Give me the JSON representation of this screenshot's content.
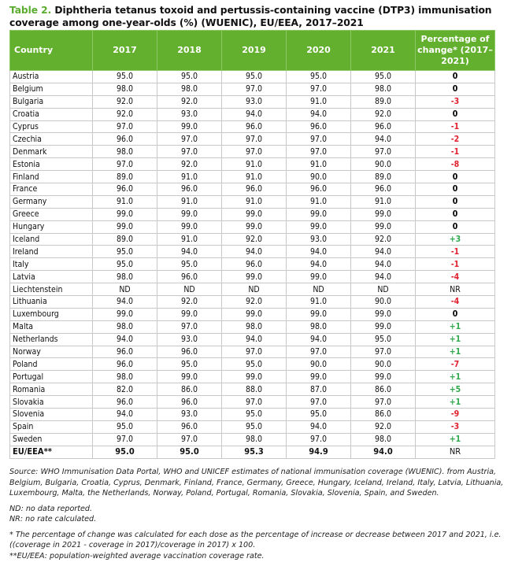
{
  "title": {
    "label": "Table 2.",
    "text": " Diphtheria tetanus toxoid and pertussis-containing vaccine (DTP3) immunisation coverage among one-year-olds (%) (WUENIC), EU/EEA, 2017–2021"
  },
  "columns": [
    "Country",
    "2017",
    "2018",
    "2019",
    "2020",
    "2021",
    "Percentage of change* (2017–2021)"
  ],
  "rows": [
    {
      "country": "Austria",
      "v": [
        "95.0",
        "95.0",
        "95.0",
        "95.0",
        "95.0"
      ],
      "change": "0",
      "sign": "zero"
    },
    {
      "country": "Belgium",
      "v": [
        "98.0",
        "98.0",
        "97.0",
        "97.0",
        "98.0"
      ],
      "change": "0",
      "sign": "zero"
    },
    {
      "country": "Bulgaria",
      "v": [
        "92.0",
        "92.0",
        "93.0",
        "91.0",
        "89.0"
      ],
      "change": "-3",
      "sign": "neg"
    },
    {
      "country": "Croatia",
      "v": [
        "92.0",
        "93.0",
        "94.0",
        "94.0",
        "92.0"
      ],
      "change": "0",
      "sign": "zero"
    },
    {
      "country": "Cyprus",
      "v": [
        "97.0",
        "99.0",
        "96.0",
        "96.0",
        "96.0"
      ],
      "change": "-1",
      "sign": "neg"
    },
    {
      "country": "Czechia",
      "v": [
        "96.0",
        "97.0",
        "97.0",
        "97.0",
        "94.0"
      ],
      "change": "-2",
      "sign": "neg"
    },
    {
      "country": "Denmark",
      "v": [
        "98.0",
        "97.0",
        "97.0",
        "97.0",
        "97.0"
      ],
      "change": "-1",
      "sign": "neg"
    },
    {
      "country": "Estonia",
      "v": [
        "97.0",
        "92.0",
        "91.0",
        "91.0",
        "90.0"
      ],
      "change": "-8",
      "sign": "neg"
    },
    {
      "country": "Finland",
      "v": [
        "89.0",
        "91.0",
        "91.0",
        "90.0",
        "89.0"
      ],
      "change": "0",
      "sign": "zero"
    },
    {
      "country": "France",
      "v": [
        "96.0",
        "96.0",
        "96.0",
        "96.0",
        "96.0"
      ],
      "change": "0",
      "sign": "zero"
    },
    {
      "country": "Germany",
      "v": [
        "91.0",
        "91.0",
        "91.0",
        "91.0",
        "91.0"
      ],
      "change": "0",
      "sign": "zero"
    },
    {
      "country": "Greece",
      "v": [
        "99.0",
        "99.0",
        "99.0",
        "99.0",
        "99.0"
      ],
      "change": "0",
      "sign": "zero"
    },
    {
      "country": "Hungary",
      "v": [
        "99.0",
        "99.0",
        "99.0",
        "99.0",
        "99.0"
      ],
      "change": "0",
      "sign": "zero"
    },
    {
      "country": "Iceland",
      "v": [
        "89.0",
        "91.0",
        "92.0",
        "93.0",
        "92.0"
      ],
      "change": "+3",
      "sign": "pos"
    },
    {
      "country": "Ireland",
      "v": [
        "95.0",
        "94.0",
        "94.0",
        "94.0",
        "94.0"
      ],
      "change": "-1",
      "sign": "neg"
    },
    {
      "country": "Italy",
      "v": [
        "95.0",
        "95.0",
        "96.0",
        "94.0",
        "94.0"
      ],
      "change": "-1",
      "sign": "neg"
    },
    {
      "country": "Latvia",
      "v": [
        "98.0",
        "96.0",
        "99.0",
        "99.0",
        "94.0"
      ],
      "change": "-4",
      "sign": "neg"
    },
    {
      "country": "Liechtenstein",
      "v": [
        "ND",
        "ND",
        "ND",
        "ND",
        "ND"
      ],
      "change": "NR",
      "sign": "nr"
    },
    {
      "country": "Lithuania",
      "v": [
        "94.0",
        "92.0",
        "92.0",
        "91.0",
        "90.0"
      ],
      "change": "-4",
      "sign": "neg"
    },
    {
      "country": "Luxembourg",
      "v": [
        "99.0",
        "99.0",
        "99.0",
        "99.0",
        "99.0"
      ],
      "change": "0",
      "sign": "zero"
    },
    {
      "country": "Malta",
      "v": [
        "98.0",
        "97.0",
        "98.0",
        "98.0",
        "99.0"
      ],
      "change": "+1",
      "sign": "pos"
    },
    {
      "country": "Netherlands",
      "v": [
        "94.0",
        "93.0",
        "94.0",
        "94.0",
        "95.0"
      ],
      "change": "+1",
      "sign": "pos"
    },
    {
      "country": "Norway",
      "v": [
        "96.0",
        "96.0",
        "97.0",
        "97.0",
        "97.0"
      ],
      "change": "+1",
      "sign": "pos"
    },
    {
      "country": "Poland",
      "v": [
        "96.0",
        "95.0",
        "95.0",
        "90.0",
        "90.0"
      ],
      "change": "-7",
      "sign": "neg"
    },
    {
      "country": "Portugal",
      "v": [
        "98.0",
        "99.0",
        "99.0",
        "99.0",
        "99.0"
      ],
      "change": "+1",
      "sign": "pos"
    },
    {
      "country": "Romania",
      "v": [
        "82.0",
        "86.0",
        "88.0",
        "87.0",
        "86.0"
      ],
      "change": "+5",
      "sign": "pos"
    },
    {
      "country": "Slovakia",
      "v": [
        "96.0",
        "96.0",
        "97.0",
        "97.0",
        "97.0"
      ],
      "change": "+1",
      "sign": "pos"
    },
    {
      "country": "Slovenia",
      "v": [
        "94.0",
        "93.0",
        "95.0",
        "95.0",
        "86.0"
      ],
      "change": "-9",
      "sign": "neg"
    },
    {
      "country": "Spain",
      "v": [
        "95.0",
        "96.0",
        "95.0",
        "94.0",
        "92.0"
      ],
      "change": "-3",
      "sign": "neg"
    },
    {
      "country": "Sweden",
      "v": [
        "97.0",
        "97.0",
        "98.0",
        "97.0",
        "98.0"
      ],
      "change": "+1",
      "sign": "pos"
    }
  ],
  "total": {
    "country": "EU/EEA**",
    "v": [
      "95.0",
      "95.0",
      "95.3",
      "94.9",
      "94.0"
    ],
    "change": "NR"
  },
  "notes": {
    "source": "Source: WHO Immunisation Data Portal, WHO and UNICEF estimates of national immunisation coverage (WUENIC).  from Austria, Belgium, Bulgaria, Croatia, Cyprus, Denmark, Finland, France, Germany, Greece, Hungary, Iceland, Ireland, Italy, Latvia, Lithuania, Luxembourg, Malta, the Netherlands, Norway, Poland, Portugal, Romania, Slovakia, Slovenia, Spain, and Sweden.",
    "nd": "ND: no data reported.",
    "nr": "NR: no rate calculated.",
    "pct": "* The percentage of change was calculated for each dose as the percentage of increase or decrease between 2017 and 2021, i.e. ((coverage in 2021 - coverage in 2017)/coverage in 2017) x 100.",
    "eu": "**EU/EEA: population-weighted average vaccination coverage rate."
  },
  "colors": {
    "header_bg": "#62b02d",
    "title_label": "#5aac2e",
    "negative": "#e0202e",
    "positive": "#2ea84a"
  }
}
